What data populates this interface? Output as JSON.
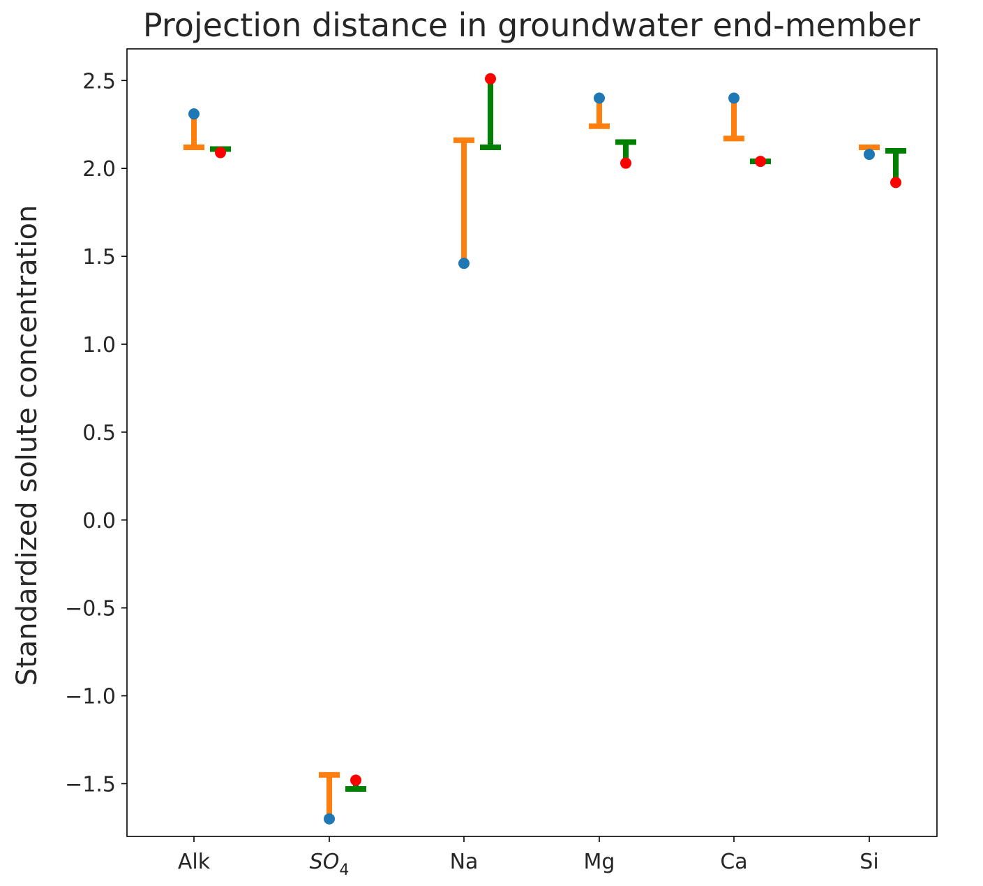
{
  "chart_data": {
    "type": "errorbar",
    "title": "Projection distance in groundwater end-member",
    "xlabel": "",
    "ylabel": "Standardized solute concentration",
    "ylim": [
      -1.8,
      2.68
    ],
    "yticks": [
      2.5,
      2.0,
      1.5,
      1.0,
      0.5,
      0.0,
      -0.5,
      -1.0,
      -1.5
    ],
    "ytick_labels": [
      "2.5",
      "2.0",
      "1.5",
      "1.0",
      "0.5",
      "0.0",
      "−0.5",
      "−1.0",
      "−1.5"
    ],
    "categories": [
      {
        "label": "Alk",
        "base": "Alk",
        "sub": ""
      },
      {
        "label": "SO4",
        "base": "SO",
        "sub": "4"
      },
      {
        "label": "Na",
        "base": "Na",
        "sub": ""
      },
      {
        "label": "Mg",
        "base": "Mg",
        "sub": ""
      },
      {
        "label": "Ca",
        "base": "Ca",
        "sub": ""
      },
      {
        "label": "Si",
        "base": "Si",
        "sub": ""
      }
    ],
    "points_left": [
      2.31,
      -1.7,
      1.46,
      2.4,
      2.4,
      2.08
    ],
    "projection_left": [
      2.12,
      -1.45,
      2.16,
      2.24,
      2.17,
      2.12
    ],
    "points_right": [
      2.09,
      -1.48,
      2.51,
      2.03,
      2.04,
      1.92
    ],
    "projection_right": [
      2.11,
      -1.53,
      2.12,
      2.15,
      2.04,
      2.1
    ],
    "colors": {
      "point_left": "#1f77b4",
      "bar_left": "#ff7f0e",
      "point_right": "#ff0000",
      "bar_right": "#008000"
    }
  }
}
